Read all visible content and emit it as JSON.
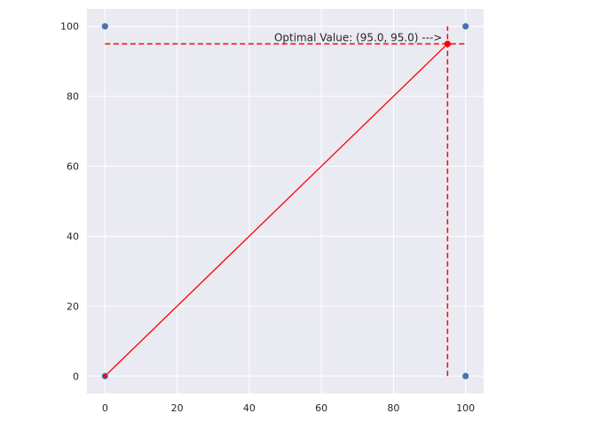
{
  "chart_data": {
    "type": "scatter",
    "title": "",
    "xlabel": "",
    "ylabel": "",
    "xlim": [
      -5,
      105
    ],
    "ylim": [
      -5,
      105
    ],
    "x_ticks": [
      0,
      20,
      40,
      60,
      80,
      100
    ],
    "y_ticks": [
      0,
      20,
      40,
      60,
      80,
      100
    ],
    "x_tick_labels": [
      "0",
      "20",
      "40",
      "60",
      "80",
      "100"
    ],
    "y_tick_labels": [
      "0",
      "20",
      "40",
      "60",
      "80",
      "100"
    ],
    "grid": true,
    "background": "#eaeaf2",
    "corner_points": {
      "x": [
        0,
        100,
        0,
        100
      ],
      "y": [
        0,
        0,
        100,
        100
      ],
      "color": "#4c72b0"
    },
    "line": {
      "x": [
        0,
        95
      ],
      "y": [
        0,
        95
      ],
      "color": "#ff0000"
    },
    "optimal_point": {
      "x": 95,
      "y": 95,
      "color": "#ff0000"
    },
    "guides": {
      "horizontal": {
        "y": 95,
        "x_range": [
          0,
          100
        ],
        "style": "dashed",
        "color": "#ff0000"
      },
      "vertical": {
        "x": 95,
        "y_range": [
          0,
          100
        ],
        "style": "dashed",
        "color": "#ff0000"
      }
    },
    "annotation": {
      "text": "Optimal Value: (95.0, 95.0) --->",
      "x": 95,
      "y": 95
    }
  }
}
